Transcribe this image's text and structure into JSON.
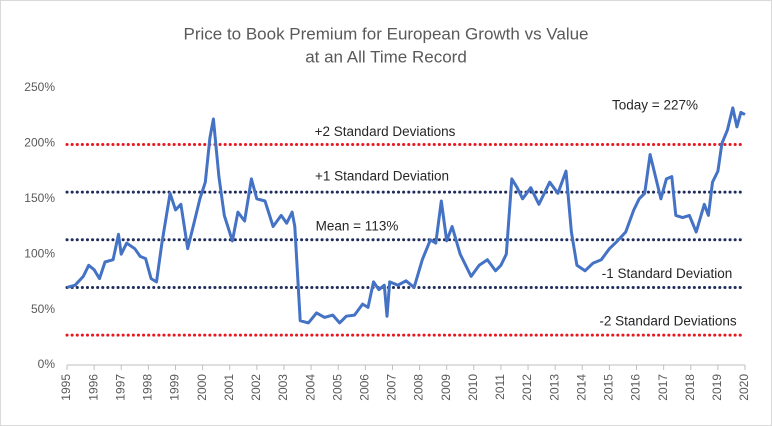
{
  "chart_data": {
    "type": "line",
    "title": [
      "Price to Book Premium for European Growth vs Value",
      "at an All Time Record"
    ],
    "x": [
      1995,
      1995.3,
      1995.6,
      1995.8,
      1996,
      1996.2,
      1996.4,
      1996.7,
      1996.9,
      1997,
      1997.2,
      1997.5,
      1997.7,
      1997.9,
      1998.1,
      1998.3,
      1998.5,
      1998.8,
      1999,
      1999.2,
      1999.45,
      1999.7,
      1999.9,
      2000.1,
      2000.27,
      2000.4,
      2000.6,
      2000.8,
      2001.1,
      2001.3,
      2001.55,
      2001.8,
      2002,
      2002.3,
      2002.6,
      2002.9,
      2003.1,
      2003.3,
      2003.4,
      2003.6,
      2003.9,
      2004.2,
      2004.5,
      2004.8,
      2005.05,
      2005.3,
      2005.6,
      2005.9,
      2006.1,
      2006.3,
      2006.5,
      2006.7,
      2006.8,
      2006.9,
      2007.2,
      2007.5,
      2007.8,
      2008.1,
      2008.4,
      2008.6,
      2008.8,
      2009,
      2009.2,
      2009.5,
      2009.9,
      2010.2,
      2010.5,
      2010.8,
      2011,
      2011.2,
      2011.4,
      2011.6,
      2011.8,
      2012.1,
      2012.4,
      2012.6,
      2012.8,
      2013.1,
      2013.4,
      2013.6,
      2013.8,
      2014.1,
      2014.4,
      2014.7,
      2015,
      2015.3,
      2015.6,
      2015.9,
      2016.1,
      2016.3,
      2016.5,
      2016.7,
      2016.9,
      2017.1,
      2017.3,
      2017.45,
      2017.7,
      2017.95,
      2018.2,
      2018.5,
      2018.65,
      2018.8,
      2019,
      2019.15,
      2019.35,
      2019.55,
      2019.7,
      2019.85,
      2020
    ],
    "series": [
      {
        "color": "#4472c4",
        "values": [
          70,
          72,
          80,
          90,
          86,
          78,
          93,
          95,
          118,
          100,
          110,
          105,
          98,
          96,
          78,
          75,
          110,
          155,
          140,
          145,
          105,
          130,
          150,
          165,
          205,
          222,
          170,
          135,
          112,
          138,
          130,
          168,
          150,
          148,
          125,
          135,
          128,
          138,
          125,
          40,
          38,
          47,
          43,
          45,
          38,
          44,
          45,
          55,
          52,
          75,
          68,
          72,
          44,
          75,
          72,
          76,
          70,
          95,
          113,
          110,
          148,
          112,
          125,
          100,
          80,
          90,
          95,
          85,
          90,
          100,
          168,
          160,
          150,
          160,
          145,
          155,
          165,
          155,
          175,
          120,
          90,
          85,
          92,
          95,
          105,
          112,
          120,
          140,
          150,
          155,
          190,
          170,
          150,
          168,
          170,
          135,
          133,
          135,
          120,
          145,
          135,
          165,
          175,
          200,
          212,
          232,
          215,
          228,
          226
        ]
      }
    ],
    "reference_lines": [
      {
        "label": "+2 Standard Deviations",
        "value": 199,
        "color": "#e8171d"
      },
      {
        "label": "+1 Standard Deviation",
        "value": 156,
        "color": "#1f2d5c"
      },
      {
        "label": "Mean = 113%",
        "value": 113,
        "color": "#1f2d5c"
      },
      {
        "label": "-1 Standard Deviation",
        "value": 70,
        "color": "#1f2d5c"
      },
      {
        "label": "-2 Standard Deviations",
        "value": 27,
        "color": "#e8171d"
      }
    ],
    "annotations": [
      "Today = 227%"
    ],
    "xlim": [
      1995,
      2020
    ],
    "xticks": [
      1995,
      1996,
      1997,
      1998,
      1999,
      2000,
      2001,
      2002,
      2003,
      2004,
      2005,
      2006,
      2007,
      2008,
      2009,
      2010,
      2011,
      2012,
      2013,
      2014,
      2015,
      2016,
      2017,
      2018,
      2019,
      2020
    ],
    "ylim": [
      0,
      250
    ],
    "yticks": [
      {
        "value": 0,
        "label": "0%"
      },
      {
        "value": 50,
        "label": "50%"
      },
      {
        "value": 100,
        "label": "100%"
      },
      {
        "value": 150,
        "label": "150%"
      },
      {
        "value": 200,
        "label": "200%"
      },
      {
        "value": 250,
        "label": "250%"
      }
    ],
    "grid": false
  }
}
